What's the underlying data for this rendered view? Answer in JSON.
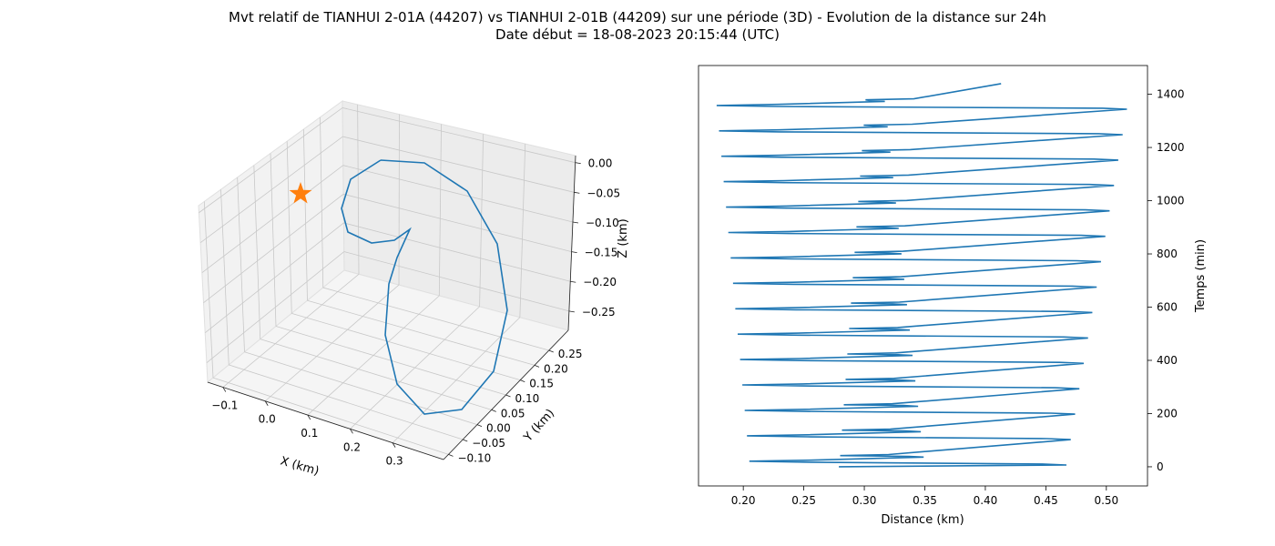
{
  "title_line1": "Mvt relatif de TIANHUI 2-01A (44207) vs TIANHUI 2-01B (44209) sur une période (3D) - Evolution de la distance sur 24h",
  "title_line2": "Date début = 18-08-2023 20:15:44 (UTC)",
  "colors": {
    "series": "#1f77b4",
    "marker": "#ff7f0e",
    "pane": "#f2f2f2",
    "grid": "#c8c8c8"
  },
  "chart_data": [
    {
      "type": "line3d",
      "xlabel": "X (km)",
      "ylabel": "Y (km)",
      "zlabel": "Z (km)",
      "xticks": [
        "−0.1",
        "0.0",
        "0.1",
        "0.2",
        "0.3"
      ],
      "yticks": [
        "−0.10",
        "−0.05",
        "0.00",
        "0.05",
        "0.10",
        "0.15",
        "0.20",
        "0.25"
      ],
      "zticks": [
        "0.00",
        "−0.05",
        "−0.10",
        "−0.15",
        "−0.20",
        "−0.25"
      ],
      "xlim": [
        -0.13,
        0.38
      ],
      "ylim": [
        -0.1,
        0.28
      ],
      "zlim": [
        -0.28,
        0.0
      ],
      "grid": true,
      "marker": {
        "shape": "star",
        "label": ""
      },
      "series": [
        {
          "name": ""
        }
      ]
    },
    {
      "type": "line",
      "xlabel": "Distance (km)",
      "ylabel": "Temps (min)",
      "xticks": [
        0.2,
        0.25,
        0.3,
        0.35,
        0.4,
        0.45,
        0.5
      ],
      "yticks": [
        0,
        200,
        400,
        600,
        800,
        1000,
        1200,
        1400
      ],
      "xlim": [
        0.163,
        0.534
      ],
      "ylim": [
        -72,
        1508
      ],
      "y_axis_side": "right",
      "grid": false,
      "start": [
        0.279,
        0
      ],
      "end": [
        0.413,
        1440
      ],
      "cycles": 15,
      "period_min": 95.5,
      "min_distance": [
        0.205,
        0.178
      ],
      "max_distance": [
        0.467,
        0.517
      ],
      "secondary_min": [
        0.28,
        0.301
      ],
      "secondary_max": [
        0.349,
        0.317
      ]
    }
  ]
}
